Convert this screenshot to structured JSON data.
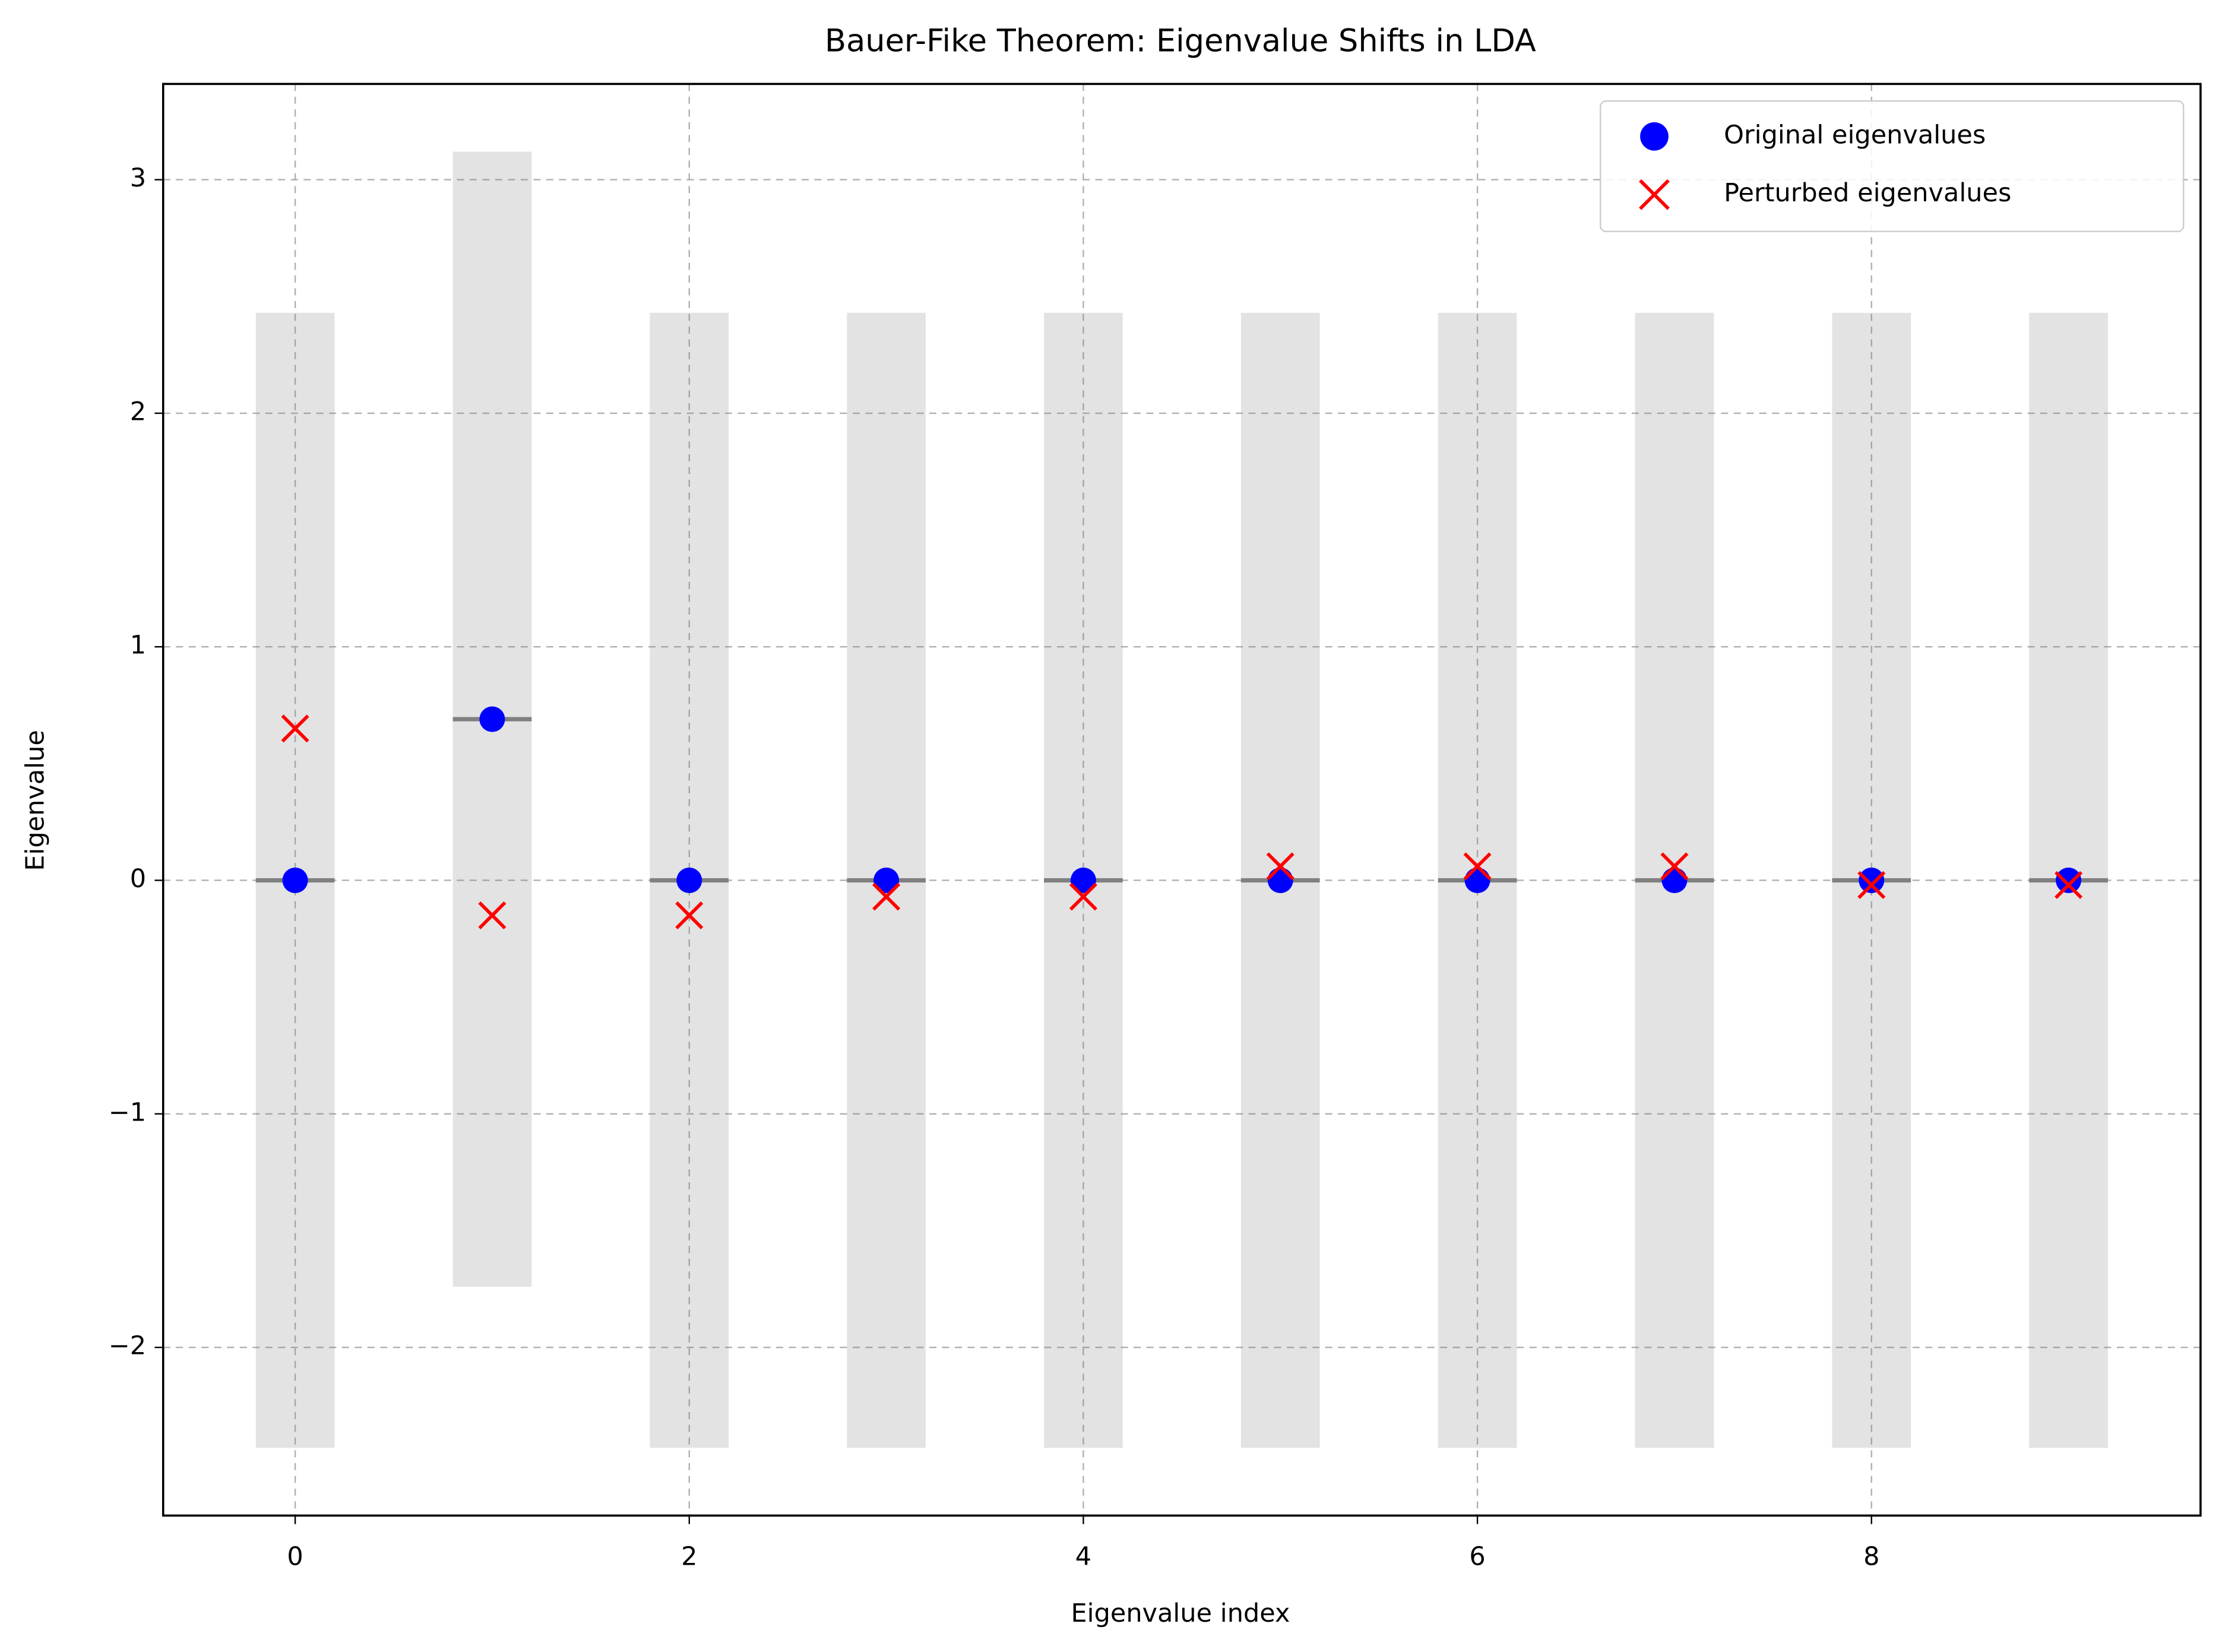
{
  "chart_data": {
    "type": "scatter",
    "title": "Bauer-Fike Theorem: Eigenvalue Shifts in LDA",
    "x_label": "Eigenvalue index",
    "y_label": "Eigenvalue",
    "x": [
      0,
      1,
      2,
      3,
      4,
      5,
      6,
      7,
      8,
      9
    ],
    "series": [
      {
        "name": "Original eigenvalues",
        "color": "#0000ff",
        "marker": "circle",
        "values": [
          0,
          0.69,
          0,
          0,
          0,
          0,
          0,
          0,
          0,
          0
        ]
      },
      {
        "name": "Perturbed eigenvalues",
        "color": "#ff0000",
        "marker": "x",
        "values": [
          0.65,
          -0.15,
          -0.15,
          -0.07,
          -0.07,
          0.06,
          0.06,
          0.06,
          -0.02,
          -0.02
        ]
      }
    ],
    "bound": 2.43,
    "bound_color": "#808080",
    "xlim": [
      -0.67,
      9.67
    ],
    "ylim": [
      -2.72,
      3.41
    ],
    "xticks": [
      0,
      2,
      4,
      6,
      8
    ],
    "yticks": [
      {
        "value": -2,
        "label": "−2"
      },
      {
        "value": -1,
        "label": "−1"
      },
      0,
      1,
      2,
      3
    ],
    "grid": true,
    "legend": "upper right"
  }
}
